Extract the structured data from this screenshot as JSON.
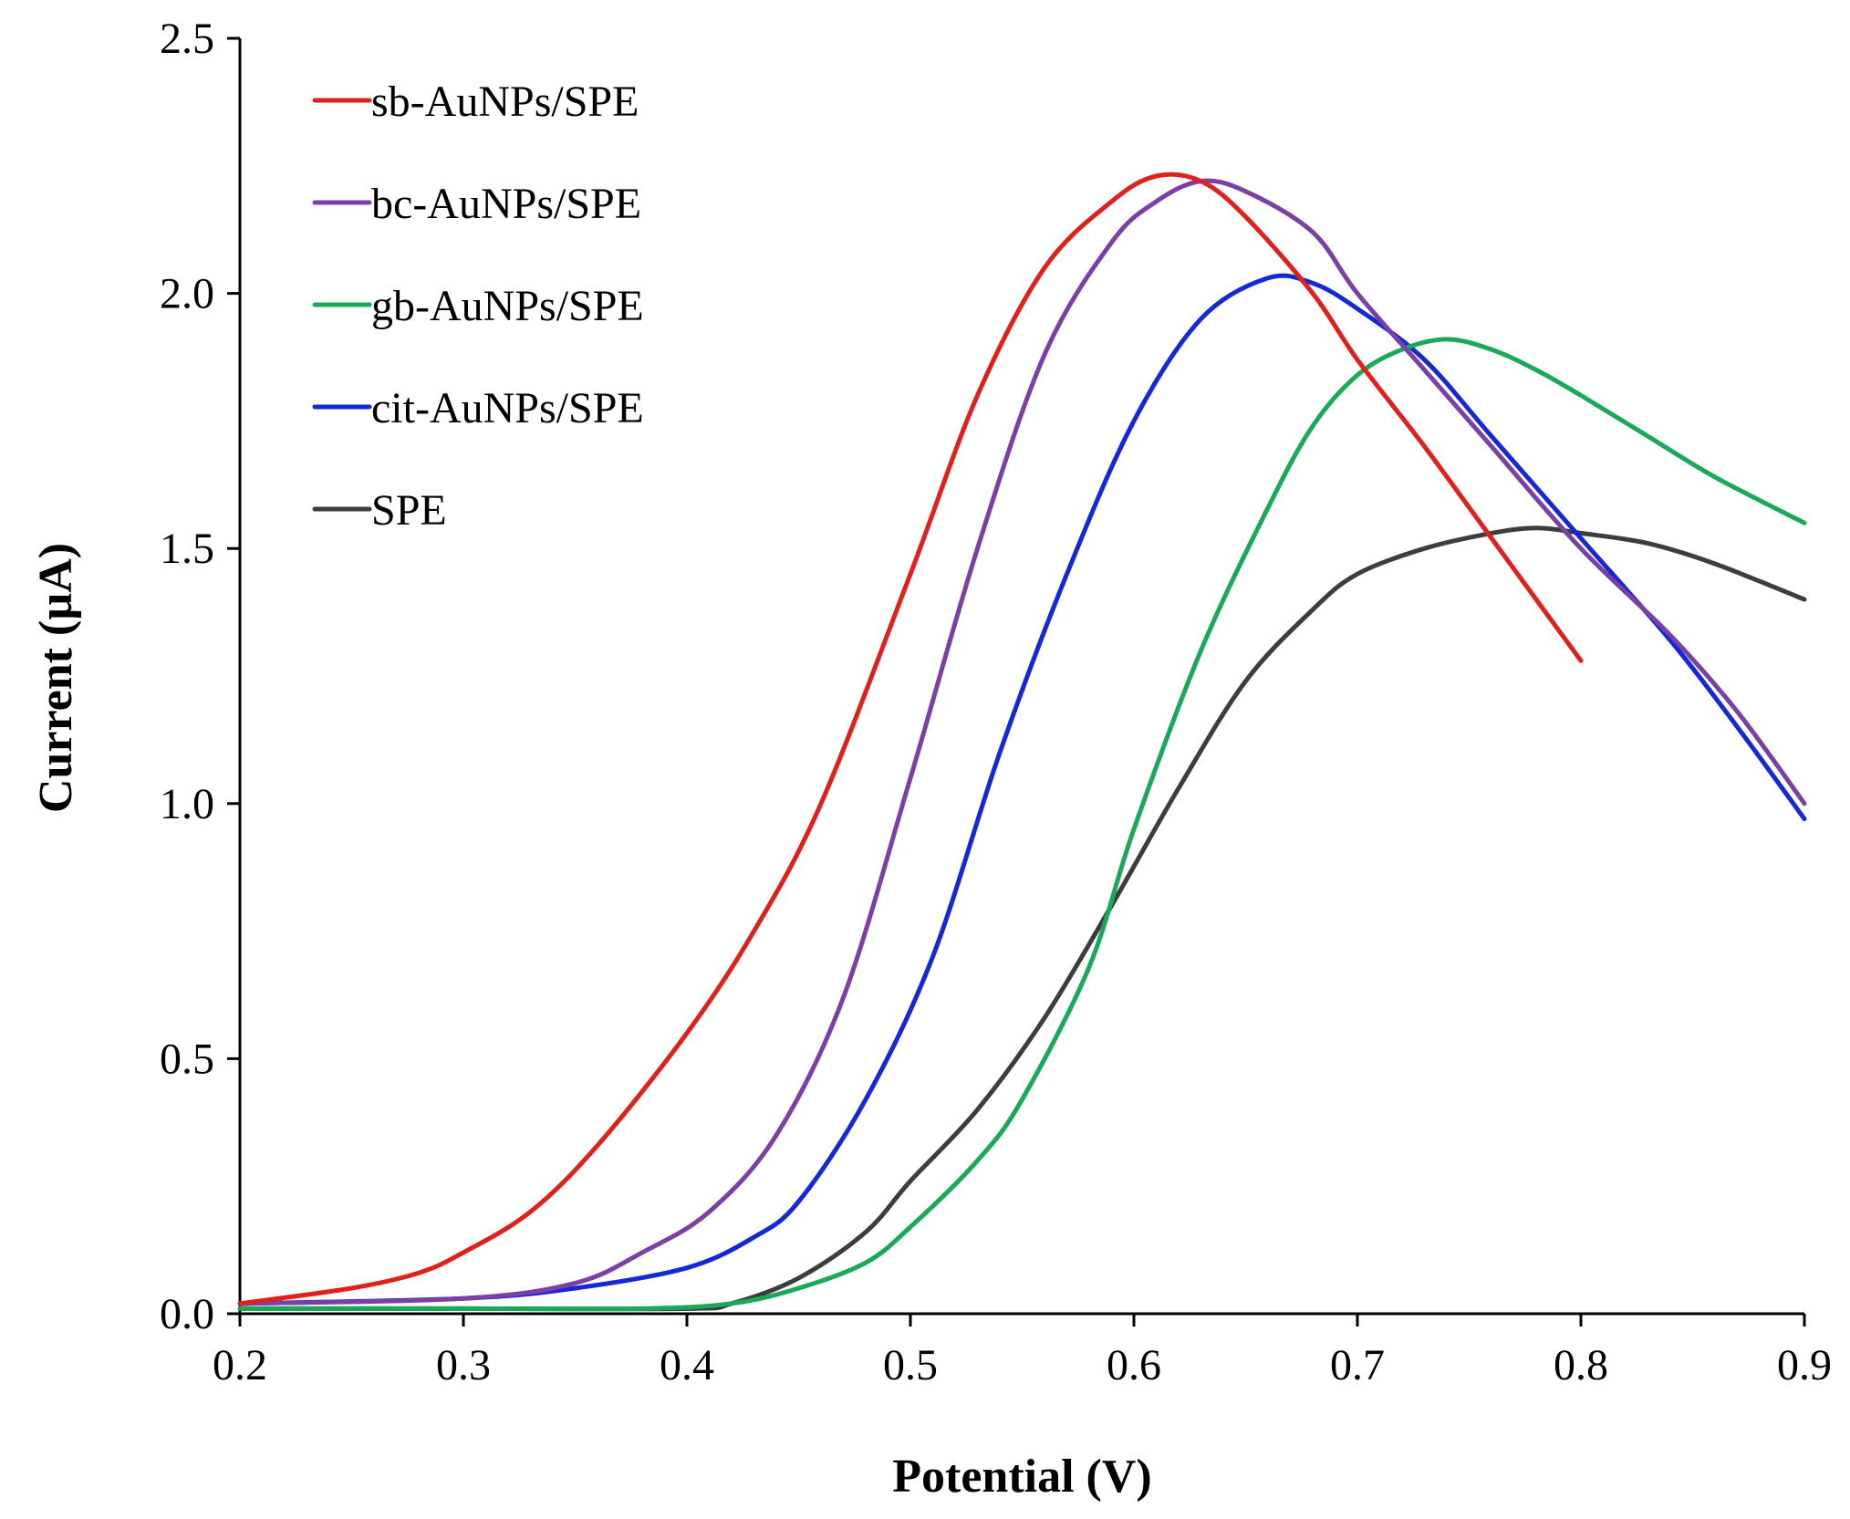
{
  "chart_data": {
    "type": "line",
    "title": "",
    "xlabel": "Potential (V)",
    "ylabel": "Current (µA)",
    "xlim": [
      0.2,
      0.9
    ],
    "ylim": [
      0.0,
      2.5
    ],
    "xticks": [
      "0.2",
      "0.3",
      "0.4",
      "0.5",
      "0.6",
      "0.7",
      "0.8",
      "0.9"
    ],
    "yticks": [
      "0.0",
      "0.5",
      "1.0",
      "1.5",
      "2.0",
      "2.5"
    ],
    "grid": false,
    "legend_position": "top-left",
    "series": [
      {
        "name": "sb-AuNPs/SPE",
        "color": "#e0201b",
        "points": [
          [
            0.2,
            0.02
          ],
          [
            0.25,
            0.05
          ],
          [
            0.28,
            0.08
          ],
          [
            0.3,
            0.12
          ],
          [
            0.33,
            0.2
          ],
          [
            0.36,
            0.33
          ],
          [
            0.4,
            0.55
          ],
          [
            0.43,
            0.75
          ],
          [
            0.46,
            1.0
          ],
          [
            0.5,
            1.45
          ],
          [
            0.53,
            1.8
          ],
          [
            0.56,
            2.05
          ],
          [
            0.59,
            2.18
          ],
          [
            0.61,
            2.23
          ],
          [
            0.63,
            2.22
          ],
          [
            0.65,
            2.15
          ],
          [
            0.68,
            2.0
          ],
          [
            0.7,
            1.87
          ],
          [
            0.73,
            1.7
          ],
          [
            0.76,
            1.52
          ],
          [
            0.78,
            1.4
          ],
          [
            0.8,
            1.28
          ]
        ]
      },
      {
        "name": "bc-AuNPs/SPE",
        "color": "#7c3fa5",
        "points": [
          [
            0.2,
            0.02
          ],
          [
            0.3,
            0.03
          ],
          [
            0.35,
            0.06
          ],
          [
            0.38,
            0.12
          ],
          [
            0.41,
            0.2
          ],
          [
            0.44,
            0.35
          ],
          [
            0.47,
            0.62
          ],
          [
            0.5,
            1.05
          ],
          [
            0.53,
            1.5
          ],
          [
            0.56,
            1.88
          ],
          [
            0.59,
            2.1
          ],
          [
            0.61,
            2.18
          ],
          [
            0.63,
            2.22
          ],
          [
            0.65,
            2.2
          ],
          [
            0.68,
            2.12
          ],
          [
            0.7,
            2.0
          ],
          [
            0.73,
            1.85
          ],
          [
            0.76,
            1.7
          ],
          [
            0.8,
            1.5
          ],
          [
            0.84,
            1.33
          ],
          [
            0.87,
            1.18
          ],
          [
            0.9,
            1.0
          ]
        ]
      },
      {
        "name": "gb-AuNPs/SPE",
        "color": "#1aa85a",
        "points": [
          [
            0.2,
            0.01
          ],
          [
            0.3,
            0.01
          ],
          [
            0.38,
            0.01
          ],
          [
            0.42,
            0.02
          ],
          [
            0.45,
            0.05
          ],
          [
            0.48,
            0.1
          ],
          [
            0.5,
            0.17
          ],
          [
            0.53,
            0.3
          ],
          [
            0.55,
            0.42
          ],
          [
            0.58,
            0.68
          ],
          [
            0.6,
            0.95
          ],
          [
            0.63,
            1.3
          ],
          [
            0.66,
            1.58
          ],
          [
            0.68,
            1.74
          ],
          [
            0.7,
            1.84
          ],
          [
            0.72,
            1.89
          ],
          [
            0.74,
            1.91
          ],
          [
            0.76,
            1.89
          ],
          [
            0.78,
            1.85
          ],
          [
            0.8,
            1.8
          ],
          [
            0.83,
            1.72
          ],
          [
            0.86,
            1.64
          ],
          [
            0.9,
            1.55
          ]
        ]
      },
      {
        "name": "cit-AuNPs/SPE",
        "color": "#1428d8",
        "points": [
          [
            0.2,
            0.02
          ],
          [
            0.3,
            0.03
          ],
          [
            0.35,
            0.05
          ],
          [
            0.4,
            0.09
          ],
          [
            0.43,
            0.15
          ],
          [
            0.45,
            0.22
          ],
          [
            0.48,
            0.42
          ],
          [
            0.51,
            0.7
          ],
          [
            0.54,
            1.1
          ],
          [
            0.57,
            1.45
          ],
          [
            0.6,
            1.75
          ],
          [
            0.63,
            1.95
          ],
          [
            0.66,
            2.03
          ],
          [
            0.68,
            2.02
          ],
          [
            0.7,
            1.97
          ],
          [
            0.73,
            1.87
          ],
          [
            0.76,
            1.72
          ],
          [
            0.8,
            1.52
          ],
          [
            0.84,
            1.32
          ],
          [
            0.87,
            1.15
          ],
          [
            0.9,
            0.97
          ]
        ]
      },
      {
        "name": "SPE",
        "color": "#3d3d3d",
        "points": [
          [
            0.2,
            0.01
          ],
          [
            0.3,
            0.01
          ],
          [
            0.4,
            0.01
          ],
          [
            0.42,
            0.02
          ],
          [
            0.45,
            0.07
          ],
          [
            0.48,
            0.16
          ],
          [
            0.5,
            0.26
          ],
          [
            0.53,
            0.4
          ],
          [
            0.56,
            0.58
          ],
          [
            0.59,
            0.8
          ],
          [
            0.62,
            1.03
          ],
          [
            0.65,
            1.24
          ],
          [
            0.68,
            1.38
          ],
          [
            0.7,
            1.45
          ],
          [
            0.73,
            1.5
          ],
          [
            0.76,
            1.53
          ],
          [
            0.78,
            1.54
          ],
          [
            0.8,
            1.53
          ],
          [
            0.83,
            1.51
          ],
          [
            0.86,
            1.47
          ],
          [
            0.9,
            1.4
          ]
        ]
      }
    ]
  }
}
